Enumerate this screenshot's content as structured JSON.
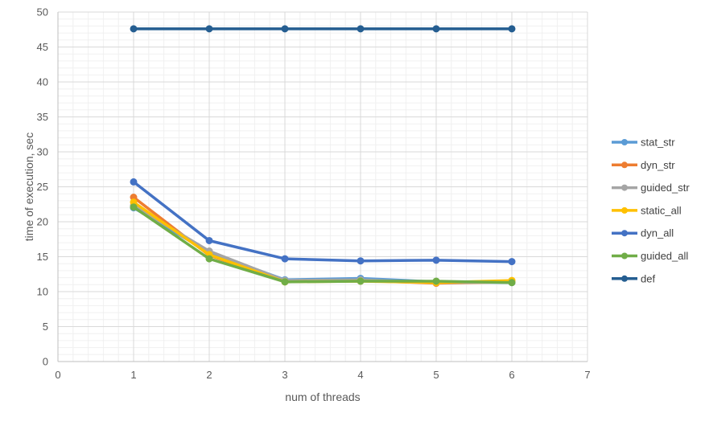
{
  "chart_data": {
    "type": "line",
    "title": "",
    "xlabel": "num of threads",
    "ylabel": "time of execution, sec",
    "xlim": [
      0,
      7
    ],
    "ylim": [
      0,
      50
    ],
    "x_ticks": [
      0,
      1,
      2,
      3,
      4,
      5,
      6,
      7
    ],
    "y_ticks": [
      0,
      5,
      10,
      15,
      20,
      25,
      30,
      35,
      40,
      45,
      50
    ],
    "grid": true,
    "legend_position": "right",
    "x": [
      1,
      2,
      3,
      4,
      5,
      6
    ],
    "series": [
      {
        "name": "stat_str",
        "color": "#5b9bd5",
        "values": [
          22.0,
          15.6,
          11.7,
          11.9,
          11.4,
          11.3
        ]
      },
      {
        "name": "dyn_str",
        "color": "#ed7d31",
        "values": [
          23.5,
          15.2,
          11.5,
          11.6,
          11.2,
          11.4
        ]
      },
      {
        "name": "guided_str",
        "color": "#a5a5a5",
        "values": [
          22.3,
          15.8,
          11.6,
          11.7,
          11.3,
          11.4
        ]
      },
      {
        "name": "static_all",
        "color": "#ffc000",
        "values": [
          22.8,
          15.3,
          11.4,
          11.5,
          11.3,
          11.6
        ]
      },
      {
        "name": "dyn_all",
        "color": "#4472c4",
        "values": [
          25.7,
          17.3,
          14.7,
          14.4,
          14.5,
          14.3
        ]
      },
      {
        "name": "guided_all",
        "color": "#70ad47",
        "values": [
          22.1,
          14.7,
          11.4,
          11.5,
          11.5,
          11.3
        ]
      },
      {
        "name": "def",
        "color": "#255e91",
        "values": [
          47.6,
          47.6,
          47.6,
          47.6,
          47.6,
          47.6
        ]
      }
    ]
  }
}
